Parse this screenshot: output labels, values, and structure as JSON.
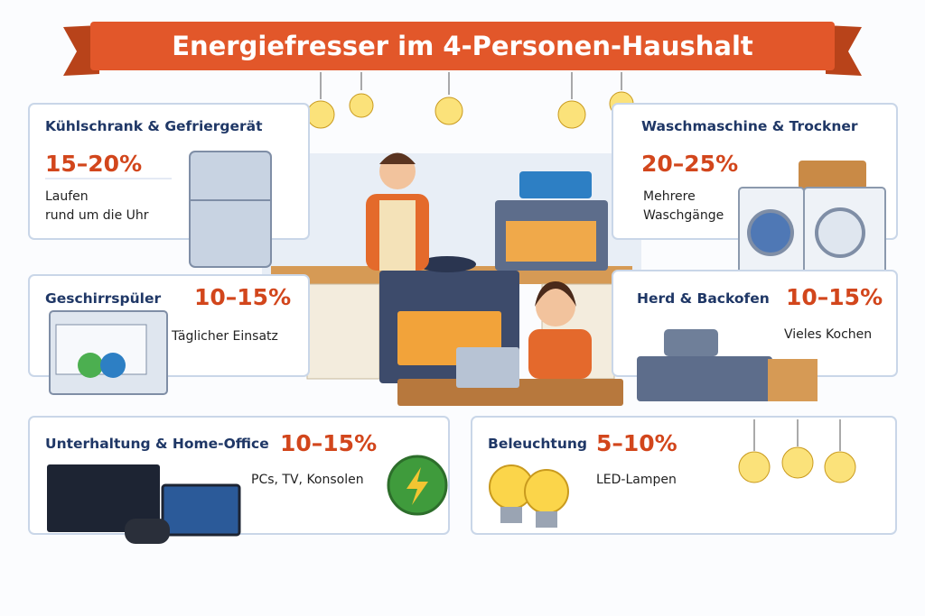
{
  "title": "Energiefresser im 4-Personen-Haushalt",
  "cards": [
    {
      "title": "Kühlschrank & Gefriergerät",
      "share": "15–20%",
      "note": [
        "Laufen",
        "rund um die Uhr"
      ]
    },
    {
      "title": "Waschmaschine & Trockner",
      "share": "20–25%",
      "note": [
        "Mehrere",
        "Waschgänge"
      ]
    },
    {
      "title": "Geschirrspüler",
      "share": "10–15%",
      "note": [
        "Täglicher Einsatz"
      ]
    },
    {
      "title": "Herd & Backofen",
      "share": "10–15%",
      "note": [
        "Vieles Kochen"
      ]
    },
    {
      "title": "Unterhaltung & Home-Office",
      "share": "10–15%",
      "note": [
        "PCs, TV, Konsolen"
      ]
    },
    {
      "title": "Beleuchtung",
      "share": "5–10%",
      "note": [
        "LED-Lampen"
      ]
    }
  ]
}
